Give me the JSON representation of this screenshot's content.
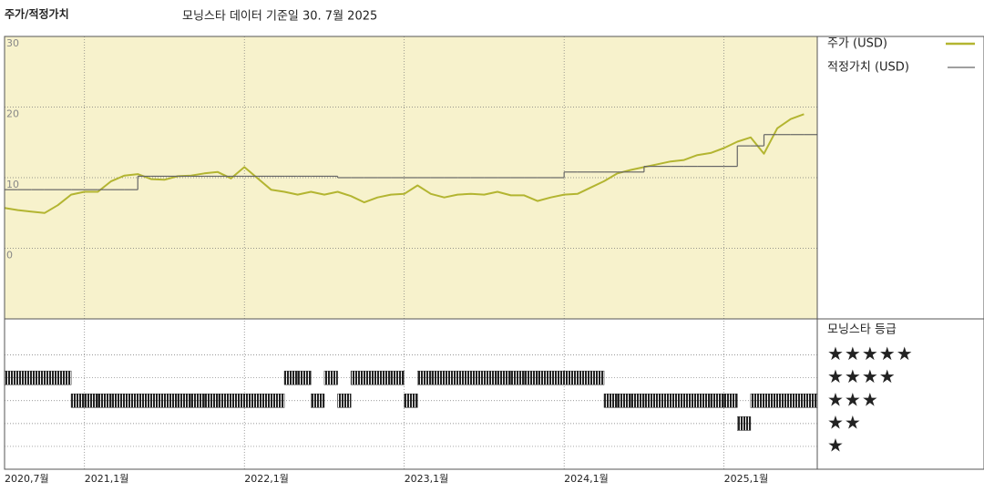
{
  "chart_data": [
    {
      "type": "line",
      "title": "주가/적정가치",
      "subtitle": "모닝스타 데이터 기준일 30. 7월 2025",
      "x": [
        "2020-07",
        "2020-08",
        "2020-09",
        "2020-10",
        "2020-11",
        "2020-12",
        "2021-01",
        "2021-02",
        "2021-03",
        "2021-04",
        "2021-05",
        "2021-06",
        "2021-07",
        "2021-08",
        "2021-09",
        "2021-10",
        "2021-11",
        "2021-12",
        "2022-01",
        "2022-02",
        "2022-03",
        "2022-04",
        "2022-05",
        "2022-06",
        "2022-07",
        "2022-08",
        "2022-09",
        "2022-10",
        "2022-11",
        "2022-12",
        "2023-01",
        "2023-02",
        "2023-03",
        "2023-04",
        "2023-05",
        "2023-06",
        "2023-07",
        "2023-08",
        "2023-09",
        "2023-10",
        "2023-11",
        "2023-12",
        "2024-01",
        "2024-02",
        "2024-03",
        "2024-04",
        "2024-05",
        "2024-06",
        "2024-07",
        "2024-08",
        "2024-09",
        "2024-10",
        "2024-11",
        "2024-12",
        "2025-01",
        "2025-02",
        "2025-03",
        "2025-04",
        "2025-05",
        "2025-06",
        "2025-07"
      ],
      "series": [
        {
          "name": "주가 (USD)",
          "color": "#b3b531",
          "values": [
            5.7,
            5.4,
            5.2,
            5.0,
            6.1,
            7.6,
            8.0,
            8.0,
            9.5,
            10.3,
            10.5,
            9.8,
            9.7,
            10.2,
            10.3,
            10.6,
            10.8,
            9.9,
            11.5,
            9.9,
            8.3,
            8.0,
            7.6,
            8.0,
            7.6,
            8.0,
            7.4,
            6.5,
            7.2,
            7.6,
            7.7,
            8.9,
            7.7,
            7.2,
            7.6,
            7.7,
            7.6,
            8.0,
            7.5,
            7.5,
            6.7,
            7.2,
            7.6,
            7.7,
            8.6,
            9.5,
            10.6,
            11.1,
            11.5,
            11.9,
            12.3,
            12.5,
            13.2,
            13.5,
            14.2,
            15.1,
            15.7,
            13.4,
            17.0,
            18.3,
            19.0
          ]
        },
        {
          "name": "적정가치 (USD)",
          "color": "#666666",
          "step": true,
          "values": [
            8.3,
            8.3,
            8.3,
            8.3,
            8.3,
            8.3,
            8.3,
            8.3,
            8.3,
            8.3,
            10.2,
            10.2,
            10.2,
            10.2,
            10.2,
            10.2,
            10.2,
            10.2,
            10.2,
            10.2,
            10.2,
            10.2,
            10.2,
            10.2,
            10.2,
            10.0,
            10.0,
            10.0,
            10.0,
            10.0,
            10.0,
            10.0,
            10.0,
            10.0,
            10.0,
            10.0,
            10.0,
            10.0,
            10.0,
            10.0,
            10.0,
            10.0,
            10.8,
            10.8,
            10.8,
            10.8,
            10.8,
            10.8,
            11.6,
            11.6,
            11.6,
            11.6,
            11.6,
            11.6,
            11.6,
            14.5,
            14.5,
            16.1,
            16.1,
            16.1,
            16.1
          ]
        }
      ],
      "xlim": [
        "2020-07",
        "2025-08"
      ],
      "xticks": [
        {
          "value": "2020-07",
          "label": "2020,7월"
        },
        {
          "value": "2021-01",
          "label": "2021,1월"
        },
        {
          "value": "2022-01",
          "label": "2022,1월"
        },
        {
          "value": "2023-01",
          "label": "2023,1월"
        },
        {
          "value": "2024-01",
          "label": "2024,1월"
        },
        {
          "value": "2025-01",
          "label": "2025,1월"
        }
      ],
      "ylim": [
        -10,
        30
      ],
      "yticks": [
        0,
        10,
        20,
        30
      ],
      "grid": true,
      "legend": "right",
      "background": "#f7f2cc"
    },
    {
      "type": "rating",
      "title": "모닝스타 등급",
      "x": [
        "2020-07",
        "2020-08",
        "2020-09",
        "2020-10",
        "2020-11",
        "2020-12",
        "2021-01",
        "2021-02",
        "2021-03",
        "2021-04",
        "2021-05",
        "2021-06",
        "2021-07",
        "2021-08",
        "2021-09",
        "2021-10",
        "2021-11",
        "2021-12",
        "2022-01",
        "2022-02",
        "2022-03",
        "2022-04",
        "2022-05",
        "2022-06",
        "2022-07",
        "2022-08",
        "2022-09",
        "2022-10",
        "2022-11",
        "2022-12",
        "2023-01",
        "2023-02",
        "2023-03",
        "2023-04",
        "2023-05",
        "2023-06",
        "2023-07",
        "2023-08",
        "2023-09",
        "2023-10",
        "2023-11",
        "2023-12",
        "2024-01",
        "2024-02",
        "2024-03",
        "2024-04",
        "2024-05",
        "2024-06",
        "2024-07",
        "2024-08",
        "2024-09",
        "2024-10",
        "2024-11",
        "2024-12",
        "2025-01",
        "2025-02",
        "2025-03",
        "2025-04",
        "2025-05",
        "2025-06",
        "2025-07"
      ],
      "values": [
        4,
        4,
        4,
        4,
        4,
        3,
        3,
        3,
        3,
        3,
        3,
        3,
        3,
        3,
        3,
        3,
        3,
        3,
        3,
        3,
        3,
        4,
        4,
        3,
        4,
        3,
        4,
        4,
        4,
        4,
        3,
        4,
        4,
        4,
        4,
        4,
        4,
        4,
        4,
        4,
        4,
        4,
        4,
        4,
        4,
        3,
        3,
        3,
        3,
        3,
        3,
        3,
        3,
        3,
        3,
        2,
        3,
        3,
        3,
        3,
        3
      ],
      "color": "#222222",
      "xlim": [
        "2020-07",
        "2025-08"
      ],
      "ylim": [
        0,
        6.5
      ],
      "yticks": [
        {
          "value": 5,
          "label": "★★★★★"
        },
        {
          "value": 4,
          "label": "★★★★"
        },
        {
          "value": 3,
          "label": "★★★"
        },
        {
          "value": 2,
          "label": "★★"
        },
        {
          "value": 1,
          "label": "★"
        }
      ],
      "grid": true
    }
  ]
}
